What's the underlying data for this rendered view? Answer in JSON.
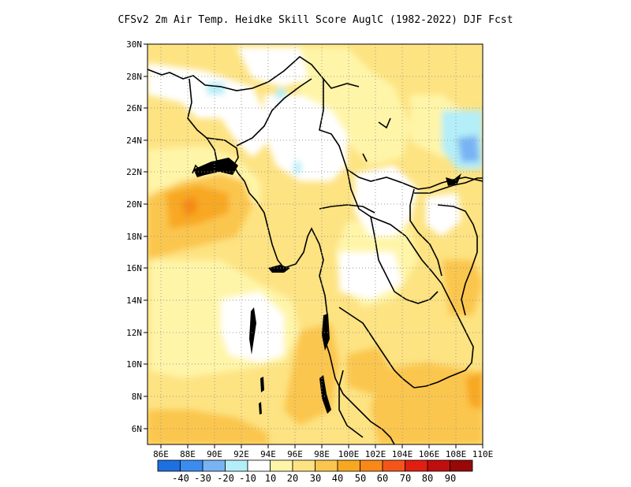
{
  "title": "CFSv2  2m Air Temp. Heidke Skill Score AuglC (1982-2022) DJF Fcst",
  "map": {
    "lon_range": [
      85,
      110
    ],
    "lat_range": [
      5,
      30
    ],
    "lon_ticks": [
      "86E",
      "88E",
      "90E",
      "92E",
      "94E",
      "96E",
      "98E",
      "100E",
      "102E",
      "104E",
      "106E",
      "108E",
      "110E"
    ],
    "lat_ticks": [
      "30N",
      "28N",
      "26N",
      "24N",
      "22N",
      "20N",
      "18N",
      "16N",
      "14N",
      "12N",
      "10N",
      "8N",
      "6N"
    ],
    "grid": "dotted"
  },
  "colorbar": {
    "labels": [
      "-40",
      "-30",
      "-20",
      "-10",
      "10",
      "20",
      "30",
      "40",
      "50",
      "60",
      "70",
      "80",
      "90"
    ],
    "colors": [
      "#1e6fe0",
      "#3c8cf0",
      "#78b4f4",
      "#b4eef8",
      "#ffffff",
      "#fff5a8",
      "#fde382",
      "#fbc64e",
      "#f8a820",
      "#f88818",
      "#f4561a",
      "#e01e12",
      "#c00e0e",
      "#980808"
    ]
  }
}
